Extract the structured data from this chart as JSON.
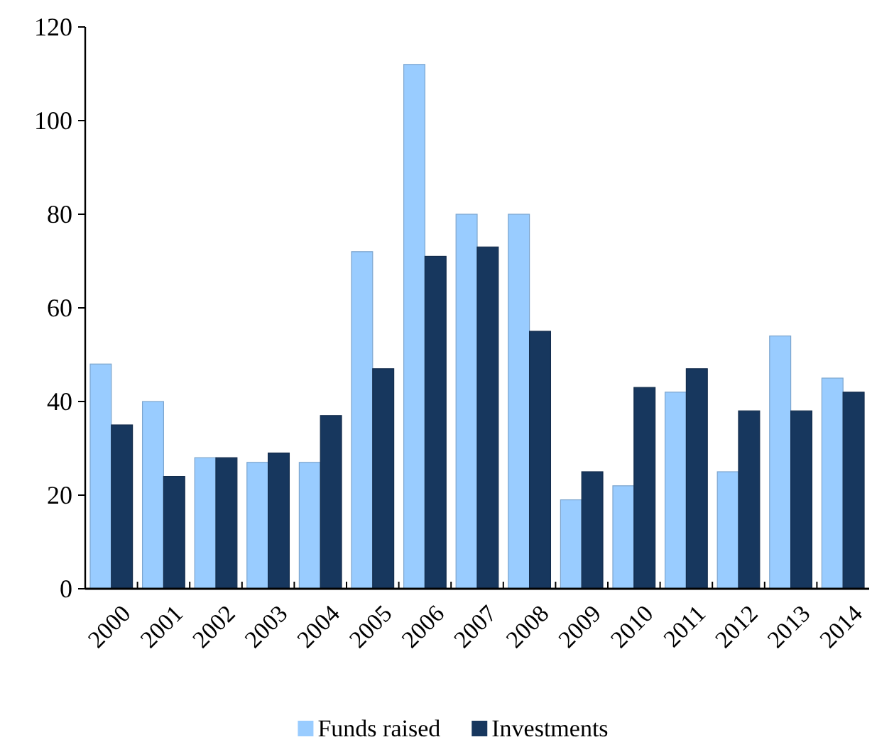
{
  "chart_data": {
    "type": "bar",
    "categories": [
      "2000",
      "2001",
      "2002",
      "2003",
      "2004",
      "2005",
      "2006",
      "2007",
      "2008",
      "2009",
      "2010",
      "2011",
      "2012",
      "2013",
      "2014"
    ],
    "series": [
      {
        "name": "Funds raised",
        "color": "#99ccff",
        "values": [
          48,
          40,
          28,
          27,
          27,
          72,
          112,
          80,
          80,
          19,
          22,
          42,
          25,
          54,
          45
        ]
      },
      {
        "name": "Investments",
        "color": "#17375e",
        "values": [
          35,
          24,
          28,
          29,
          37,
          47,
          71,
          73,
          55,
          25,
          43,
          47,
          38,
          38,
          42
        ]
      }
    ],
    "ylim": [
      0,
      120
    ],
    "yticks": [
      0,
      20,
      40,
      60,
      80,
      100,
      120
    ],
    "grid": false,
    "legend": "bottom"
  }
}
